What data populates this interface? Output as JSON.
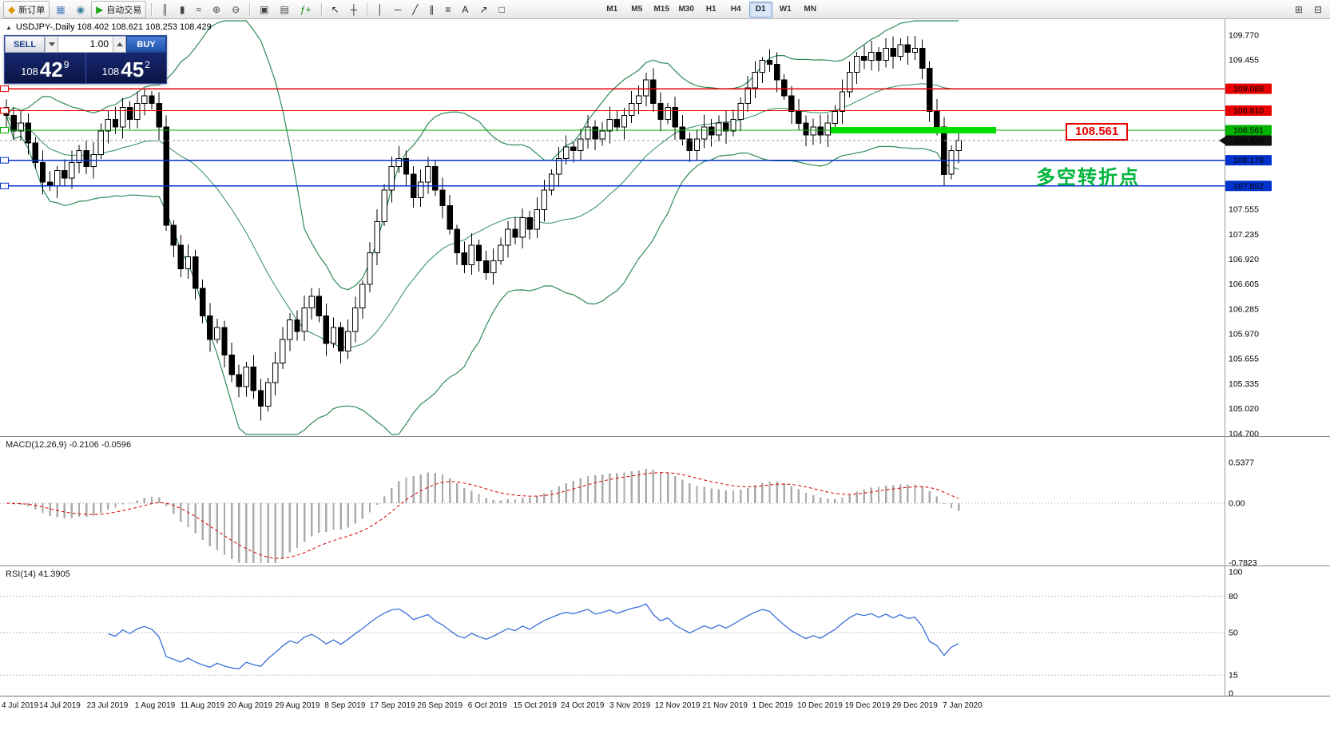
{
  "toolbar": {
    "groups": [
      {
        "items": [
          {
            "name": "new-order-button",
            "label": "新订单",
            "glyph": "◆",
            "glyph_color": "#d99a00"
          },
          {
            "name": "charts-button",
            "glyph": "▦",
            "glyph_color": "#4a7ebb"
          },
          {
            "name": "profiles-button",
            "glyph": "◉",
            "glyph_color": "#3a7f9f"
          },
          {
            "name": "autotrading-button",
            "label": "自动交易",
            "glyph": "▶",
            "glyph_color": "#1aa21a"
          }
        ]
      },
      {
        "items": [
          {
            "name": "bar-chart-button",
            "glyph": "║",
            "glyph_color": "#444444"
          },
          {
            "name": "candlestick-chart-button",
            "glyph": "▮",
            "glyph_color": "#444444"
          },
          {
            "name": "line-chart-button",
            "glyph": "≈",
            "glyph_color": "#444444"
          },
          {
            "name": "zoom-in-button",
            "glyph": "⊕",
            "glyph_color": "#444444"
          },
          {
            "name": "zoom-out-button",
            "glyph": "⊖",
            "glyph_color": "#444444"
          }
        ]
      },
      {
        "items": [
          {
            "name": "tile-windows-button",
            "glyph": "▣",
            "glyph_color": "#444444"
          },
          {
            "name": "cascade-windows-button",
            "glyph": "▤",
            "glyph_color": "#444444"
          },
          {
            "name": "indicators-button",
            "glyph": "ƒ+",
            "glyph_color": "#1a8a1a"
          }
        ]
      },
      {
        "items": [
          {
            "name": "cursor-button",
            "glyph": "↖",
            "glyph_color": "#222222"
          },
          {
            "name": "crosshair-button",
            "glyph": "┼",
            "glyph_color": "#222222"
          }
        ]
      },
      {
        "items": [
          {
            "name": "vertical-line-button",
            "glyph": "│",
            "glyph_color": "#222222"
          },
          {
            "name": "horizontal-line-button",
            "glyph": "─",
            "glyph_color": "#222222"
          },
          {
            "name": "trendline-button",
            "glyph": "╱",
            "glyph_color": "#222222"
          },
          {
            "name": "channel-button",
            "glyph": "∥",
            "glyph_color": "#222222"
          },
          {
            "name": "fibonacci-button",
            "glyph": "≡",
            "glyph_color": "#222222"
          },
          {
            "name": "text-button",
            "glyph": "A",
            "glyph_color": "#222222"
          },
          {
            "name": "arrows-button",
            "glyph": "↗",
            "glyph_color": "#222222"
          },
          {
            "name": "shapes-button",
            "glyph": "□",
            "glyph_color": "#222222"
          }
        ]
      }
    ],
    "timeframes": [
      "M1",
      "M5",
      "M15",
      "M30",
      "H1",
      "H4",
      "D1",
      "W1",
      "MN"
    ],
    "active_timeframe": "D1",
    "right_buttons": [
      {
        "name": "quick-search-button",
        "glyph": "⊞",
        "glyph_color": "#444444"
      },
      {
        "name": "quick-nav-button",
        "glyph": "⊟",
        "glyph_color": "#444444"
      }
    ]
  },
  "chart": {
    "title": "USDJPY-,Daily 108.402 108.621 108.253 108.429",
    "symbol": "USDJPY-",
    "period": "Daily",
    "ohlc": {
      "open": "108.402",
      "high": "108.621",
      "low": "108.253",
      "close": "108.429"
    }
  },
  "one_click": {
    "sell_label": "SELL",
    "buy_label": "BUY",
    "volume": "1.00",
    "sell_big": "108",
    "sell_pips": "42",
    "sell_sup": "9",
    "buy_big": "108",
    "buy_pips": "45",
    "buy_sup": "2"
  },
  "annotations": {
    "level_label": "108.561",
    "cn_text": "多空转折点",
    "green_bar": {
      "price": 108.561,
      "color": "#00de00"
    }
  },
  "levels": [
    {
      "price": 109.088,
      "label": "109.088",
      "color": "#e80000"
    },
    {
      "price": 108.81,
      "label": "108.810",
      "color": "#e80000"
    },
    {
      "price": 108.561,
      "label": "108.561",
      "color": "#00b300"
    },
    {
      "price": 108.178,
      "label": "108.178",
      "color": "#0133cc"
    },
    {
      "price": 107.852,
      "label": "107.852",
      "color": "#0133cc"
    }
  ],
  "current_price": {
    "value": 108.429,
    "label": "108.429",
    "color": "#111111"
  },
  "price_scale": {
    "ticks": [
      109.77,
      109.455,
      107.555,
      107.235,
      106.92,
      106.605,
      106.285,
      105.97,
      105.655,
      105.335,
      105.02,
      104.7
    ]
  },
  "macd": {
    "label": "MACD(12,26,9) -0.2106 -0.0596",
    "scale": [
      {
        "text": "0.5377",
        "value": 0.5377
      },
      {
        "text": "0.00",
        "value": 0
      },
      {
        "text": "-0.7823",
        "value": -0.7823
      }
    ]
  },
  "rsi": {
    "label": "RSI(14) 41.3905",
    "scale": [
      {
        "text": "100",
        "value": 100
      },
      {
        "text": "80",
        "value": 80
      },
      {
        "text": "50",
        "value": 50
      },
      {
        "text": "15",
        "value": 15
      },
      {
        "text": "0",
        "value": 0
      }
    ],
    "levels": [
      80,
      50,
      15
    ]
  },
  "dates": [
    "4 Jul 2019",
    "14 Jul 2019",
    "23 Jul 2019",
    "1 Aug 2019",
    "11 Aug 2019",
    "20 Aug 2019",
    "29 Aug 2019",
    "8 Sep 2019",
    "17 Sep 2019",
    "26 Sep 2019",
    "6 Oct 2019",
    "15 Oct 2019",
    "24 Oct 2019",
    "3 Nov 2019",
    "12 Nov 2019",
    "21 Nov 2019",
    "1 Dec 2019",
    "10 Dec 2019",
    "19 Dec 2019",
    "29 Dec 2019",
    "7 Jan 2020"
  ],
  "chart_data": {
    "type": "candlestick",
    "symbol": "USDJPY",
    "timeframe": "Daily",
    "x_range": [
      "4 Jul 2019",
      "7 Jan 2020"
    ],
    "y_range": [
      104.7,
      109.97
    ],
    "ohlc_current": {
      "open": 108.402,
      "high": 108.621,
      "low": 108.253,
      "close": 108.429
    },
    "first_open": 108.85,
    "closes": [
      108.75,
      108.55,
      108.65,
      108.4,
      108.15,
      107.9,
      107.85,
      108.05,
      107.95,
      108.15,
      108.3,
      108.1,
      108.25,
      108.55,
      108.7,
      108.6,
      108.85,
      108.7,
      108.9,
      109.0,
      108.9,
      108.6,
      107.35,
      107.1,
      106.8,
      106.95,
      106.55,
      106.2,
      105.9,
      106.05,
      105.7,
      105.45,
      105.3,
      105.55,
      105.25,
      105.05,
      105.35,
      105.6,
      105.9,
      106.15,
      106.0,
      106.3,
      106.45,
      106.2,
      105.85,
      106.05,
      105.75,
      106.0,
      106.3,
      106.6,
      107.0,
      107.4,
      107.8,
      108.1,
      108.2,
      108.0,
      107.7,
      107.9,
      108.1,
      107.8,
      107.6,
      107.3,
      107.0,
      106.85,
      107.1,
      106.9,
      106.75,
      106.9,
      107.1,
      107.3,
      107.2,
      107.45,
      107.3,
      107.55,
      107.8,
      108.0,
      108.2,
      108.35,
      108.3,
      108.45,
      108.6,
      108.45,
      108.55,
      108.7,
      108.6,
      108.75,
      108.9,
      109.0,
      109.2,
      108.9,
      108.7,
      108.85,
      108.6,
      108.45,
      108.3,
      108.45,
      108.6,
      108.5,
      108.65,
      108.55,
      108.7,
      108.9,
      109.1,
      109.3,
      109.45,
      109.4,
      109.2,
      109.0,
      108.8,
      108.65,
      108.5,
      108.6,
      108.5,
      108.65,
      108.8,
      109.05,
      109.3,
      109.5,
      109.45,
      109.55,
      109.45,
      109.6,
      109.5,
      109.65,
      109.55,
      109.6,
      109.35,
      108.8,
      108.6,
      108.0,
      108.3,
      108.43
    ],
    "wick_overrides": {
      "19": {
        "high": 109.09
      },
      "35": {
        "low": 104.87
      },
      "88": {
        "high": 109.29
      },
      "104": {
        "high": 109.49
      },
      "123": {
        "high": 109.73
      },
      "129": {
        "low": 107.85
      }
    },
    "indicators": {
      "bollinger": {
        "period": 20,
        "deviation": 2,
        "color": "#2e8b57"
      },
      "macd": {
        "fast": 12,
        "slow": 26,
        "signal": 9,
        "current": -0.2106,
        "current_signal": -0.0596,
        "scale_max": 0.5377,
        "scale_min": -0.7823
      },
      "rsi": {
        "period": 14,
        "current": 41.3905
      }
    }
  }
}
